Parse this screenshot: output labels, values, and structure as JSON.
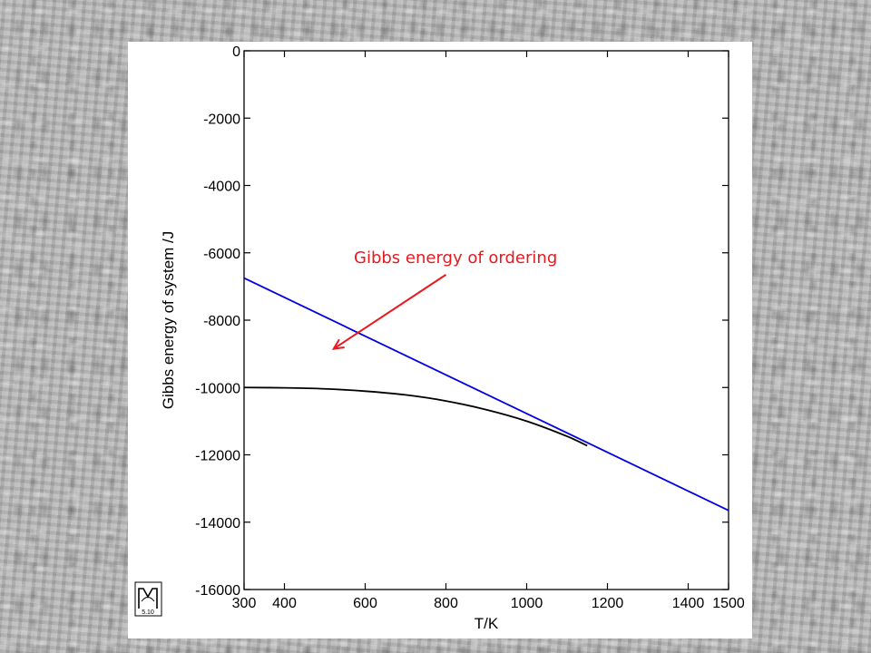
{
  "chart_data": {
    "type": "line",
    "xlabel": "T/K",
    "ylabel": "Gibbs energy of system /J",
    "xlim": [
      300,
      1500
    ],
    "ylim": [
      -16000,
      0
    ],
    "xticks": [
      300,
      400,
      600,
      800,
      1000,
      1200,
      1400,
      1500
    ],
    "yticks": [
      0,
      -2000,
      -4000,
      -6000,
      -8000,
      -10000,
      -12000,
      -14000,
      -16000
    ],
    "grid": false,
    "series": [
      {
        "color": "#0000e0",
        "x": [
          300,
          1500
        ],
        "y": [
          -6750,
          -13650
        ]
      },
      {
        "color": "#000000",
        "x": [
          300,
          400,
          500,
          600,
          700,
          800,
          900,
          1000,
          1100,
          1150
        ],
        "y": [
          -10000,
          -10010,
          -10040,
          -10110,
          -10220,
          -10400,
          -10660,
          -11000,
          -11450,
          -11730
        ]
      }
    ],
    "annotation": {
      "text": "Gibbs energy of ordering",
      "color": "#e8191e",
      "arrow_from": [
        800,
        -6650
      ],
      "arrow_to": [
        522,
        -8850
      ]
    }
  },
  "logo": {
    "text": "TDAA",
    "version": "5.10"
  }
}
